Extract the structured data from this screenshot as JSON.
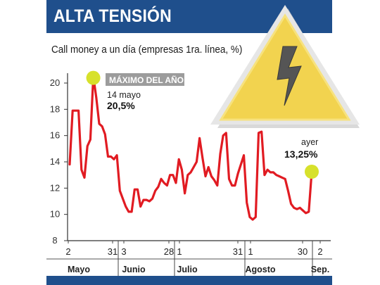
{
  "header": {
    "title": "ALTA TENSIÓN"
  },
  "colors": {
    "header_bg": "#1f4f8c",
    "line": "#e11b22",
    "highlight": "#d7e12b",
    "warning_sign": "#f2d34f",
    "callout_bg": "#9c9c9c"
  },
  "icons": [
    "warning-sign-icon",
    "lightning-bolt-icon"
  ],
  "chart_data": {
    "type": "line",
    "title": "Call money a un día (empresas 1ra. línea, %)",
    "xlabel": "",
    "ylabel": "",
    "ylim": [
      8,
      21
    ],
    "yticks": [
      8,
      10,
      12,
      14,
      16,
      18,
      20
    ],
    "x_tick_labels": [
      "2",
      "31",
      "3",
      "28",
      "1",
      "31",
      "1",
      "30",
      "2"
    ],
    "months": [
      "Mayo",
      "Junio",
      "Julio",
      "Agosto",
      "Sep."
    ],
    "grid": false,
    "series": [
      {
        "values": [
          13.8,
          17.9,
          17.9,
          17.9,
          13.4,
          12.8,
          15.2,
          15.7,
          20.5,
          18.9,
          16.9,
          16.7,
          16.1,
          14.4,
          14.4,
          14.2,
          14.5,
          11.8,
          11.2,
          10.6,
          10.2,
          10.2,
          11.9,
          11.9,
          10.6,
          11.1,
          11.1,
          11.0,
          11.2,
          11.8,
          12.1,
          12.7,
          12.4,
          12.2,
          13.0,
          13.0,
          12.4,
          14.2,
          13.4,
          11.6,
          13.0,
          13.2,
          13.6,
          14.0,
          15.8,
          14.3,
          12.9,
          13.6,
          12.9,
          12.6,
          12.2,
          14.6,
          16.0,
          16.2,
          12.7,
          12.2,
          12.2,
          13.1,
          13.8,
          14.5,
          10.9,
          9.8,
          9.6,
          9.8,
          16.2,
          16.3,
          13.0,
          13.4,
          13.2,
          13.2,
          13.0,
          12.9,
          12.8,
          12.7,
          11.8,
          10.8,
          10.5,
          10.4,
          10.5,
          10.3,
          10.1,
          10.2,
          13.25
        ]
      }
    ],
    "annotations": [
      {
        "label": "MÁXIMO DEL AÑO",
        "date": "14 mayo",
        "value": "20,5%"
      },
      {
        "date": "ayer",
        "value": "13,25%"
      }
    ]
  }
}
